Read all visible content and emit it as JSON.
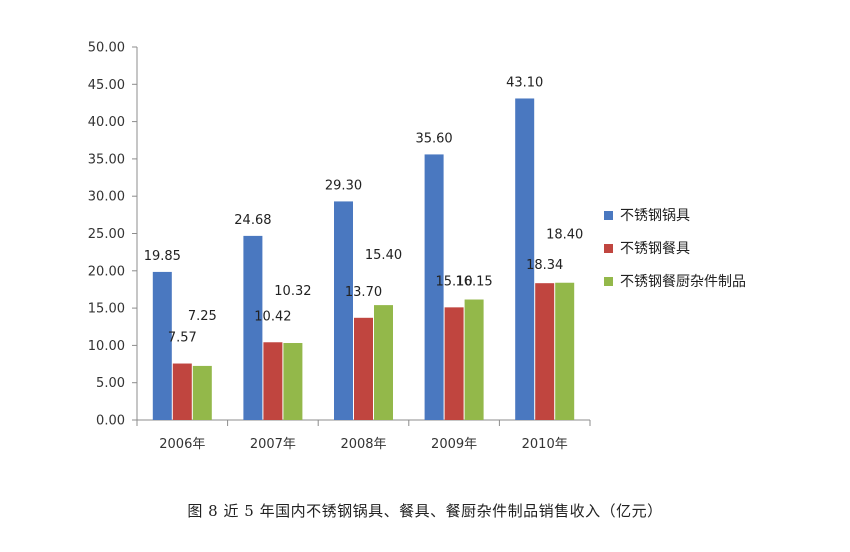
{
  "caption": "图 8 近 5 年国内不锈钢锅具、餐具、餐厨杂件制品销售收入（亿元）",
  "chart_data": {
    "type": "bar",
    "categories": [
      "2006年",
      "2007年",
      "2008年",
      "2009年",
      "2010年"
    ],
    "series": [
      {
        "name": "不锈钢锅具",
        "values": [
          19.85,
          24.68,
          29.3,
          35.6,
          43.1
        ],
        "labels": [
          "19.85",
          "24.68",
          "29.30",
          "35.60",
          "43.10"
        ],
        "color": "#4a78c0"
      },
      {
        "name": "不锈钢餐具",
        "values": [
          7.57,
          10.42,
          13.7,
          15.1,
          18.34
        ],
        "labels": [
          "7.57",
          "10.42",
          "13.70",
          "15.10",
          "18.34"
        ],
        "color": "#c0453f"
      },
      {
        "name": "不锈钢餐厨杂件制品",
        "values": [
          7.25,
          10.32,
          15.4,
          16.15,
          18.4
        ],
        "labels": [
          "7.25",
          "10.32",
          "15.40",
          "16.15",
          "18.40"
        ],
        "color": "#93b84a"
      }
    ],
    "y_ticks": [
      "0.00",
      "5.00",
      "10.00",
      "15.00",
      "20.00",
      "25.00",
      "30.00",
      "35.00",
      "40.00",
      "45.00",
      "50.00"
    ],
    "ylim": [
      0,
      50
    ],
    "legend_position": "right",
    "grid": false
  }
}
